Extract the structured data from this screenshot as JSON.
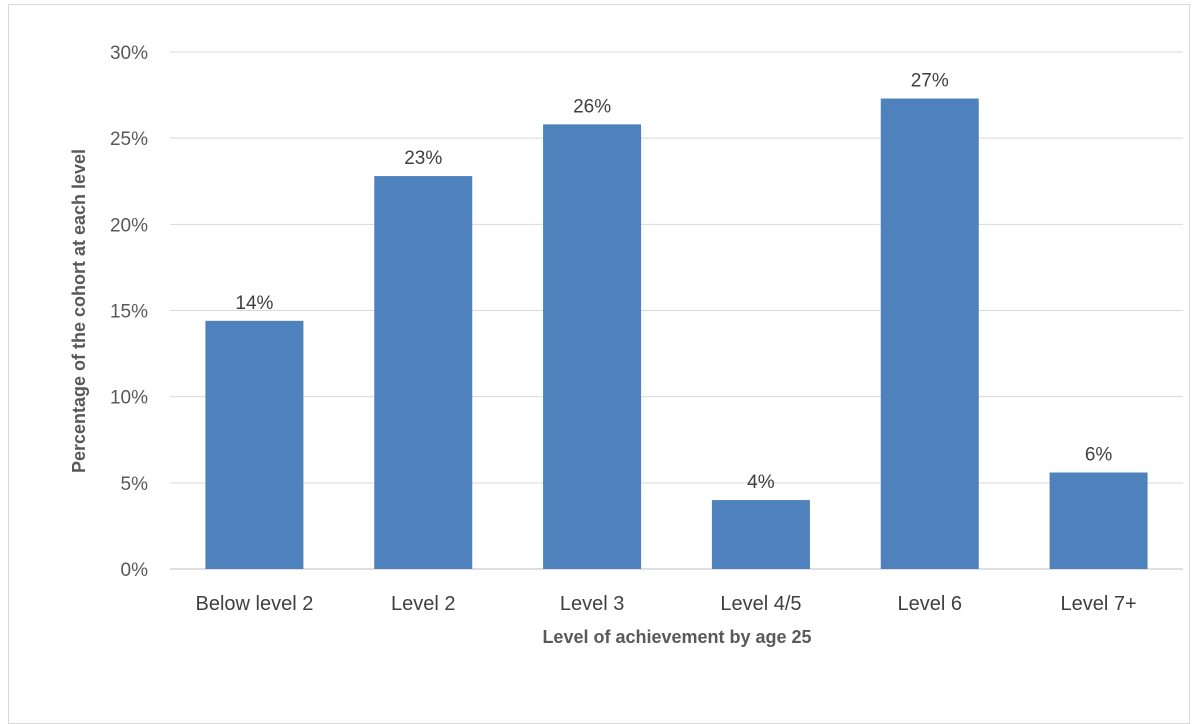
{
  "chart_data": {
    "type": "bar",
    "categories": [
      "Below level 2",
      "Level 2",
      "Level 3",
      "Level 4/5",
      "Level 6",
      "Level 7+"
    ],
    "values": [
      14.4,
      22.8,
      25.8,
      4.0,
      27.3,
      5.6
    ],
    "data_labels": [
      "14%",
      "23%",
      "26%",
      "4%",
      "27%",
      "6%"
    ],
    "title": "",
    "xlabel": "Level of achievement by age 25",
    "ylabel": "Percentage of the cohort at each level",
    "ylim": [
      0,
      30
    ],
    "yticks": [
      0,
      5,
      10,
      15,
      20,
      25,
      30
    ],
    "ytick_labels": [
      "0%",
      "5%",
      "10%",
      "15%",
      "20%",
      "25%",
      "30%"
    ],
    "bar_color": "#4F81BD",
    "grid": true,
    "legend": "none"
  }
}
